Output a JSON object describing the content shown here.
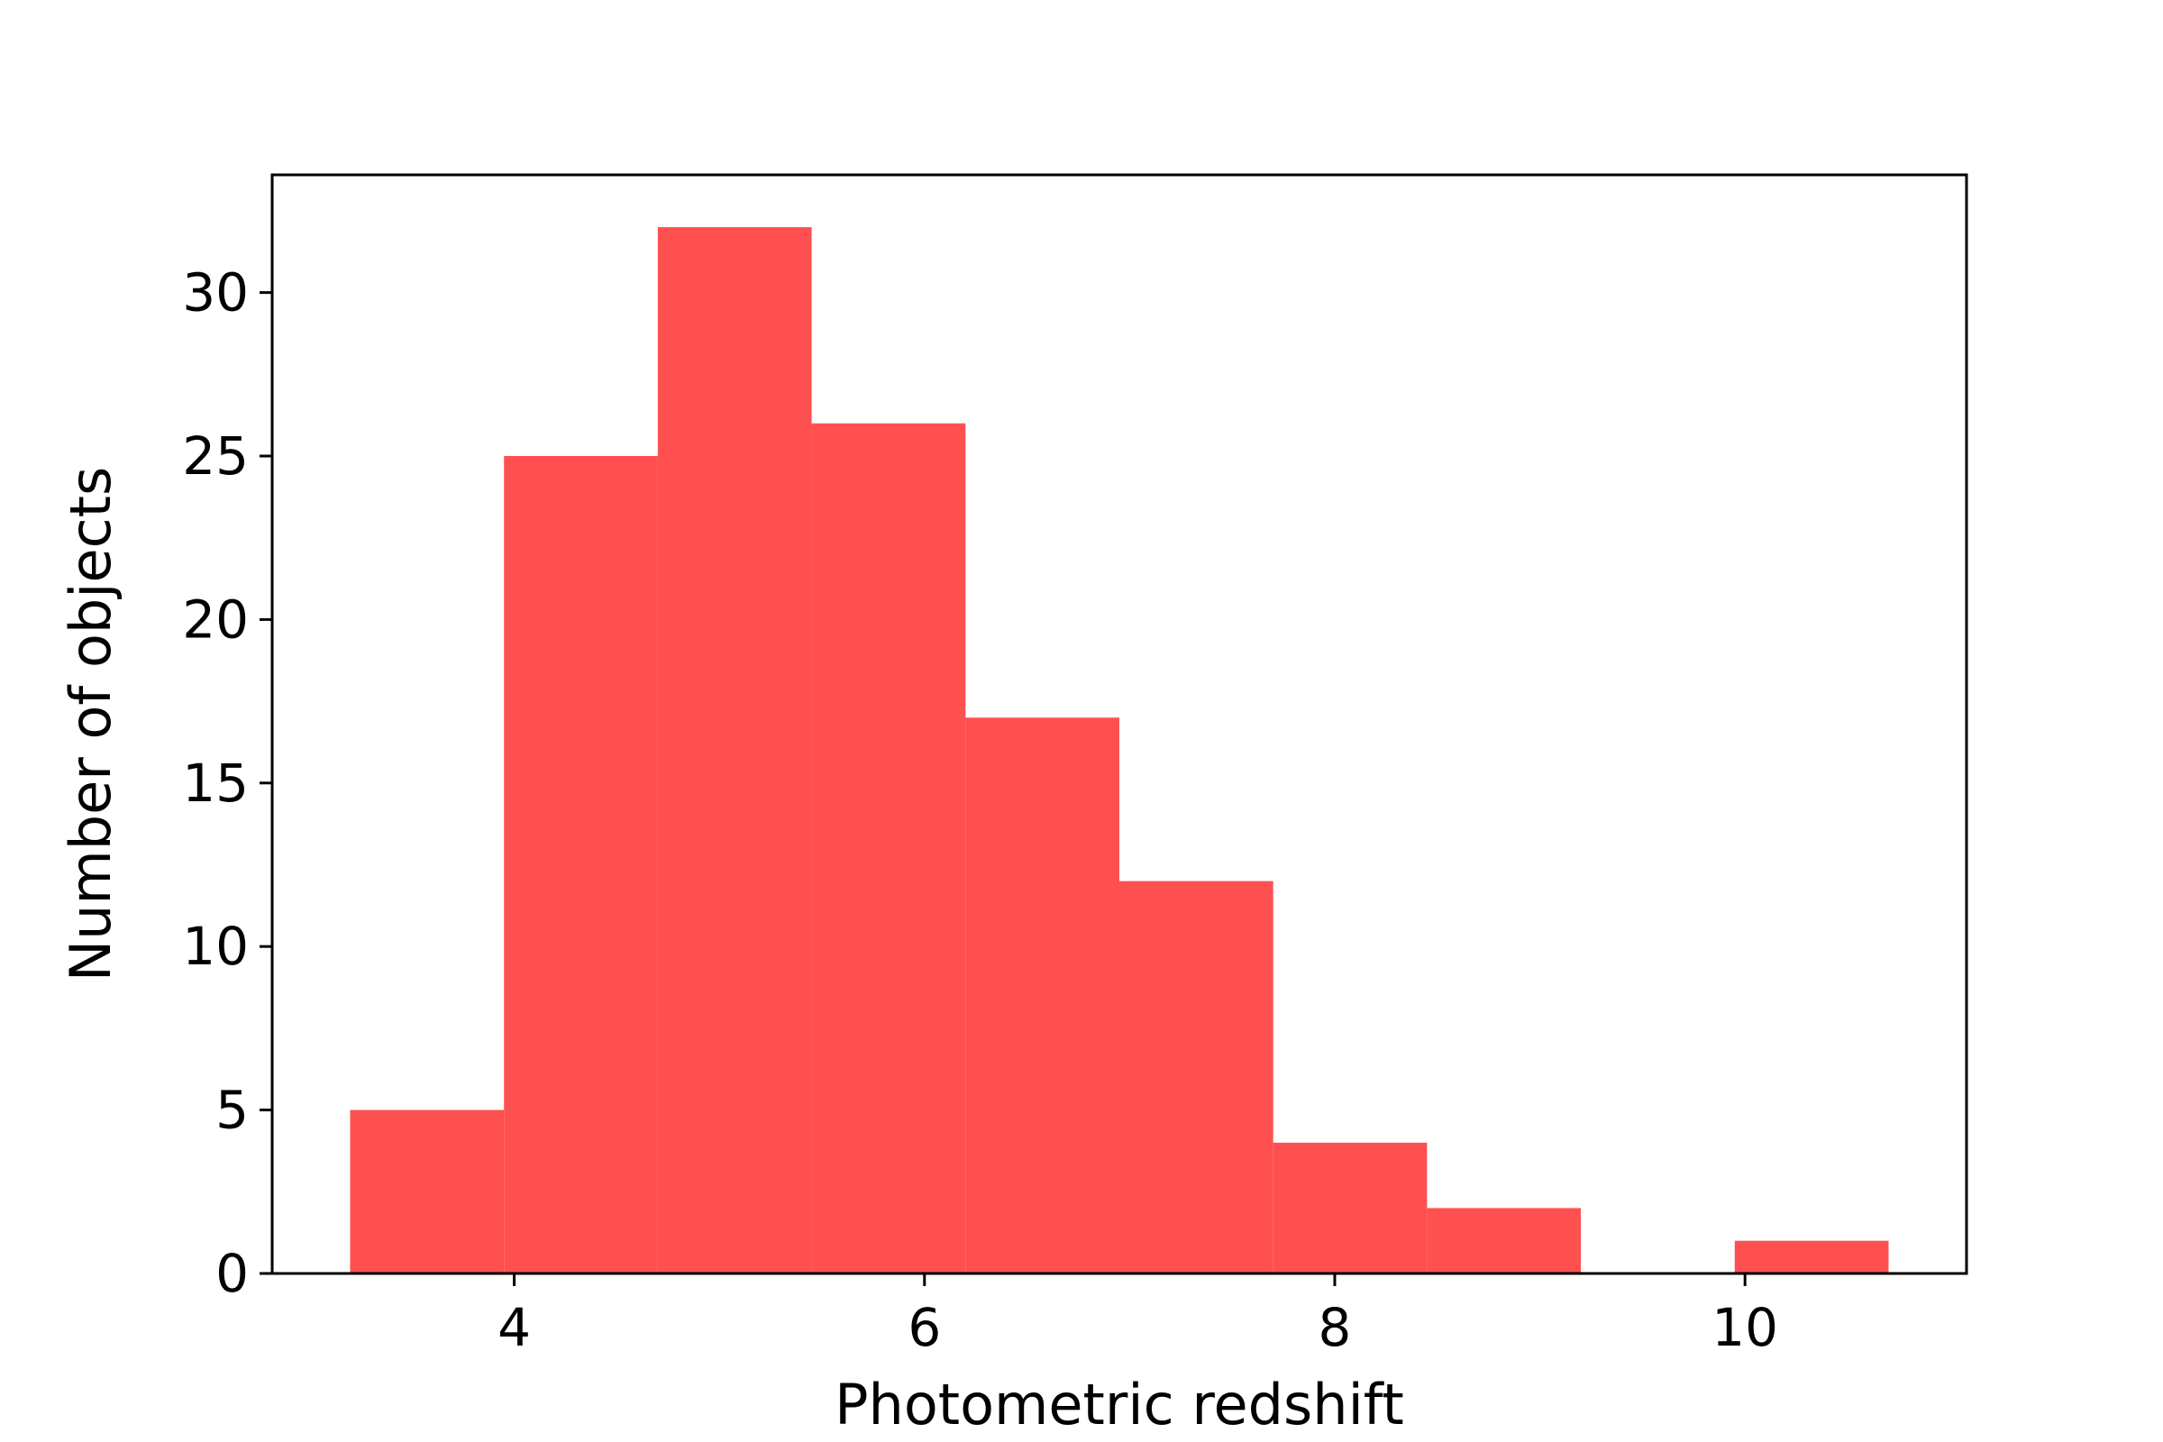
{
  "chart_data": {
    "type": "bar",
    "bin_edges": [
      3.2,
      3.95,
      4.7,
      5.45,
      6.2,
      6.95,
      7.7,
      8.45,
      9.2,
      9.95,
      10.7
    ],
    "values": [
      5,
      25,
      32,
      26,
      17,
      12,
      4,
      2,
      0,
      1
    ],
    "xlabel": "Photometric redshift",
    "ylabel": "Number of objects",
    "xlim": [
      2.82,
      11.08
    ],
    "ylim": [
      0,
      33.6
    ],
    "xticks": [
      4,
      6,
      8,
      10
    ],
    "xtick_labels": [
      "4",
      "6",
      "8",
      "10"
    ],
    "yticks": [
      0,
      5,
      10,
      15,
      20,
      25,
      30
    ],
    "ytick_labels": [
      "0",
      "5",
      "10",
      "15",
      "20",
      "25",
      "30"
    ],
    "bar_color": "#ff5050",
    "grid": false,
    "legend": "none"
  }
}
